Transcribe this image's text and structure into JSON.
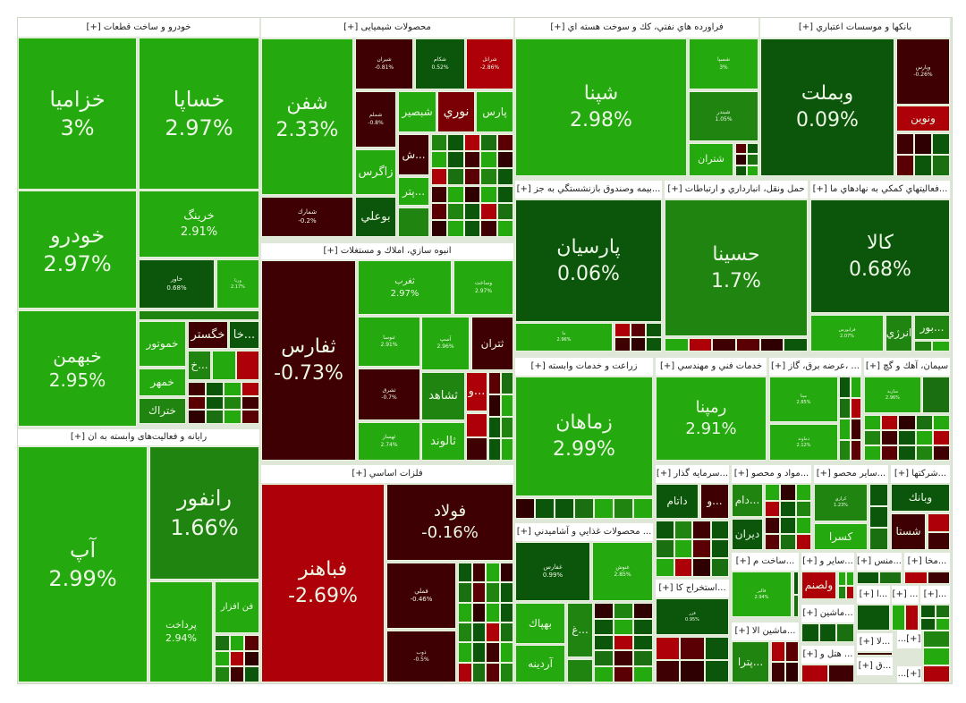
{
  "palette": {
    "light_green": "#24a90f",
    "mid_green": "#1f8410",
    "dark_green": "#0b560b",
    "dark_red": "#3e0003",
    "red": "#ad0009",
    "bright_red": "#e3000c"
  },
  "sectors": [
    {
      "title": "خودرو و ساخت قطعات [+]",
      "tiles": [
        {
          "symbol": "خزامیا",
          "change": "3%",
          "color": "#24a90f"
        },
        {
          "symbol": "خساپا",
          "change": "2.97%",
          "color": "#24a90f"
        },
        {
          "symbol": "خودرو",
          "change": "2.97%",
          "color": "#24a90f"
        },
        {
          "symbol": "خبهمن",
          "change": "2.95%",
          "color": "#24a90f"
        },
        {
          "symbol": "خرینگ",
          "change": "2.91%",
          "color": "#24a90f"
        },
        {
          "symbol": "خاور",
          "change": "0.68%",
          "color": "#0b560b"
        },
        {
          "symbol": "ورنا",
          "change": "2.17%",
          "color": "#24a90f"
        },
        {
          "symbol": "خموتور",
          "change": "",
          "color": "#24a90f"
        },
        {
          "symbol": "خمهر",
          "change": "",
          "color": "#24a90f"
        },
        {
          "symbol": "ختراك",
          "change": "",
          "color": "#1f8410"
        },
        {
          "symbol": "خگستر",
          "change": "",
          "color": "#3e0003"
        },
        {
          "symbol": "...خا",
          "change": "",
          "color": "#0b560b"
        },
        {
          "symbol": "...خ",
          "change": "",
          "color": "#1f8410"
        }
      ]
    },
    {
      "title": "رایانه و فعالیت‌های وابسته به ان [+]",
      "tiles": [
        {
          "symbol": "آپ",
          "change": "2.99%",
          "color": "#24a90f"
        },
        {
          "symbol": "رانفور",
          "change": "1.66%",
          "color": "#1f8410"
        },
        {
          "symbol": "پرداخت",
          "change": "2.94%",
          "color": "#24a90f"
        },
        {
          "symbol": "فن افزار",
          "change": "",
          "color": "#24a90f"
        }
      ]
    },
    {
      "title": "محصولات شیمیایی [+]",
      "tiles": [
        {
          "symbol": "شفن",
          "change": "2.33%",
          "color": "#24a90f"
        },
        {
          "symbol": "شمارك",
          "change": "-0.2%",
          "color": "#3e0003"
        },
        {
          "symbol": "شیران",
          "change": "-0.81%",
          "color": "#3e0003"
        },
        {
          "symbol": "شکام",
          "change": "0.52%",
          "color": "#0b560b"
        },
        {
          "symbol": "شرانل",
          "change": "-2.86%",
          "color": "#ad0009"
        },
        {
          "symbol": "شملم",
          "change": "-0.8%",
          "color": "#3e0003"
        },
        {
          "symbol": "شبصیر",
          "change": "",
          "color": "#24a90f"
        },
        {
          "symbol": "نوري",
          "change": "",
          "color": "#7a0005"
        },
        {
          "symbol": "پارس",
          "change": "",
          "color": "#24a90f"
        },
        {
          "symbol": "زاگرس",
          "change": "",
          "color": "#24a90f"
        },
        {
          "symbol": "بوعلي",
          "change": "",
          "color": "#0b560b"
        },
        {
          "symbol": "...ش",
          "change": "",
          "color": "#3e0003"
        },
        {
          "symbol": "...پتر",
          "change": "",
          "color": "#24a90f"
        }
      ]
    },
    {
      "title": "انبوه سازي، املاك و مستغلات [+]",
      "tiles": [
        {
          "symbol": "ثفارس",
          "change": "-0.73%",
          "color": "#3e0003"
        },
        {
          "symbol": "ثغرب",
          "change": "2.97%",
          "color": "#24a90f"
        },
        {
          "symbol": "وساخت",
          "change": "2.97%",
          "color": "#24a90f"
        },
        {
          "symbol": "ثنوسا",
          "change": "2.91%",
          "color": "#24a90f"
        },
        {
          "symbol": "آسپ",
          "change": "2.96%",
          "color": "#24a90f"
        },
        {
          "symbol": "ثتران",
          "change": "",
          "color": "#3e0003"
        },
        {
          "symbol": "ثشرق",
          "change": "-0.7%",
          "color": "#3e0003"
        },
        {
          "symbol": "ثهساز",
          "change": "2.74%",
          "color": "#24a90f"
        },
        {
          "symbol": "ثشاهد",
          "change": "",
          "color": "#1f8410"
        },
        {
          "symbol": "ثالوند",
          "change": "",
          "color": "#24a90f"
        },
        {
          "symbol": "...و",
          "change": "",
          "color": "#ad0009"
        }
      ]
    },
    {
      "title": "فلزات اساسي [+]",
      "tiles": [
        {
          "symbol": "فباهنر",
          "change": "-2.69%",
          "color": "#ad0009"
        },
        {
          "symbol": "فولاد",
          "change": "-0.16%",
          "color": "#3e0003"
        },
        {
          "symbol": "فملي",
          "change": "-0.46%",
          "color": "#3e0003"
        },
        {
          "symbol": "ذوب",
          "change": "-0.5%",
          "color": "#3e0003"
        }
      ]
    },
    {
      "title": "فراورده هاي نفتي، كك و سوخت هسته اي [+]",
      "tiles": [
        {
          "symbol": "شپنا",
          "change": "2.98%",
          "color": "#24a90f"
        },
        {
          "symbol": "شسپا",
          "change": "3%",
          "color": "#24a90f"
        },
        {
          "symbol": "شبندر",
          "change": "1.05%",
          "color": "#1f8410"
        },
        {
          "symbol": "شتران",
          "change": "",
          "color": "#24a90f"
        }
      ]
    },
    {
      "title": "بانكها و موسسات اعتباري [+]",
      "tiles": [
        {
          "symbol": "وبملت",
          "change": "0.09%",
          "color": "#0b560b"
        },
        {
          "symbol": "وپارس",
          "change": "-0.26%",
          "color": "#3e0003"
        },
        {
          "symbol": "ونوين",
          "change": "",
          "color": "#ad0009"
        }
      ]
    },
    {
      "title": "...بيمه وصندوق بازنشستگي به جز [+]",
      "tiles": [
        {
          "symbol": "پارسیان",
          "change": "0.06%",
          "color": "#0b560b"
        },
        {
          "symbol": "ما",
          "change": "2.96%",
          "color": "#24a90f"
        }
      ]
    },
    {
      "title": "حمل ونقل، انبارداري و ارتباطات [+]",
      "tiles": [
        {
          "symbol": "حسینا",
          "change": "1.7%",
          "color": "#1f8410"
        }
      ]
    },
    {
      "title": "...فعاليتهاي كمكي به نهادهاي ما [+]",
      "tiles": [
        {
          "symbol": "كالا",
          "change": "0.68%",
          "color": "#0b560b"
        },
        {
          "symbol": "فرابورس",
          "change": "2.07%",
          "color": "#24a90f"
        },
        {
          "symbol": "انرژي",
          "change": "",
          "color": "#1f8410"
        },
        {
          "symbol": "...بور",
          "change": "",
          "color": "#1f8410"
        }
      ]
    },
    {
      "title": "زراعت و خدمات وابسته [+]",
      "tiles": [
        {
          "symbol": "زماهان",
          "change": "2.99%",
          "color": "#24a90f"
        }
      ]
    },
    {
      "title": "... محصولات غذايي و آشاميدني [+]",
      "tiles": [
        {
          "symbol": "غفارس",
          "change": "0.99%",
          "color": "#0b560b"
        },
        {
          "symbol": "غنوش",
          "change": "2.85%",
          "color": "#24a90f"
        },
        {
          "symbol": "بهپاك",
          "change": "",
          "color": "#24a90f"
        },
        {
          "symbol": "...غ",
          "change": "",
          "color": "#1f8410"
        },
        {
          "symbol": "آردینه",
          "change": "",
          "color": "#24a90f"
        }
      ]
    },
    {
      "title": "خدمات فني و مهندسي [+]",
      "tiles": [
        {
          "symbol": "رمپنا",
          "change": "2.91%",
          "color": "#24a90f"
        }
      ]
    },
    {
      "title": "... ،عرضه برق، گاز [+]",
      "tiles": [
        {
          "symbol": "مپنا",
          "change": "2.85%",
          "color": "#24a90f"
        },
        {
          "symbol": "دماوند",
          "change": "2.12%",
          "color": "#24a90f"
        }
      ]
    },
    {
      "title": "سیمان، آهك و گچ [+]",
      "tiles": [
        {
          "symbol": "ساربد",
          "change": "2.96%",
          "color": "#24a90f"
        }
      ]
    },
    {
      "title": "...سرمايه گذار [+]",
      "tiles": [
        {
          "symbol": "داتام",
          "change": "",
          "color": "#0b560b"
        },
        {
          "symbol": "...و",
          "change": "",
          "color": "#3e0003"
        }
      ]
    },
    {
      "title": "...استخراج كا [+]",
      "tiles": [
        {
          "symbol": "فزر",
          "change": "0.95%",
          "color": "#0b560b"
        }
      ]
    },
    {
      "title": "...مواد و محصو [+]",
      "tiles": [
        {
          "symbol": "...دام",
          "change": "",
          "color": "#1f8410"
        },
        {
          "symbol": "ديران",
          "change": "",
          "color": "#0b560b"
        }
      ]
    },
    {
      "title": "...ساير محصو [+]",
      "tiles": [
        {
          "symbol": "كرازي",
          "change": "1.23%",
          "color": "#1f8410"
        },
        {
          "symbol": "كسرا",
          "change": "",
          "color": "#24a90f"
        }
      ]
    },
    {
      "title": "...شركتها [+]",
      "tiles": [
        {
          "symbol": "وبانك",
          "change": "",
          "color": "#0b560b"
        },
        {
          "symbol": "شستا",
          "change": "",
          "color": "#3e0003"
        }
      ]
    },
    {
      "title": "...ساخت م [+]",
      "tiles": [
        {
          "symbol": "قالبر",
          "change": "2.94%",
          "color": "#24a90f"
        }
      ]
    },
    {
      "title": "...ماشين الا [+]",
      "tiles": [
        {
          "symbol": "...پترا",
          "change": "",
          "color": "#1f8410"
        }
      ]
    },
    {
      "title": "...ساير و [+]",
      "tiles": [
        {
          "symbol": "ولصنم",
          "change": "",
          "color": "#ad0009"
        }
      ]
    },
    {
      "title": "...ماشين [+]",
      "tiles": []
    },
    {
      "title": "... هتل و [+]",
      "tiles": []
    },
    {
      "title": "...منس [+]",
      "tiles": []
    },
    {
      "title": "...مخا [+]",
      "tiles": []
    },
    {
      "title": "...ا [+]",
      "tiles": []
    },
    {
      "title": "... [+]",
      "tiles": []
    },
    {
      "title": "...[+]",
      "tiles": []
    },
    {
      "title": "...لا [+]",
      "tiles": []
    },
    {
      "title": "...ق [+]",
      "tiles": []
    },
    {
      "title": "[+]...",
      "tiles": []
    },
    {
      "title": "[+]...",
      "tiles": []
    }
  ]
}
